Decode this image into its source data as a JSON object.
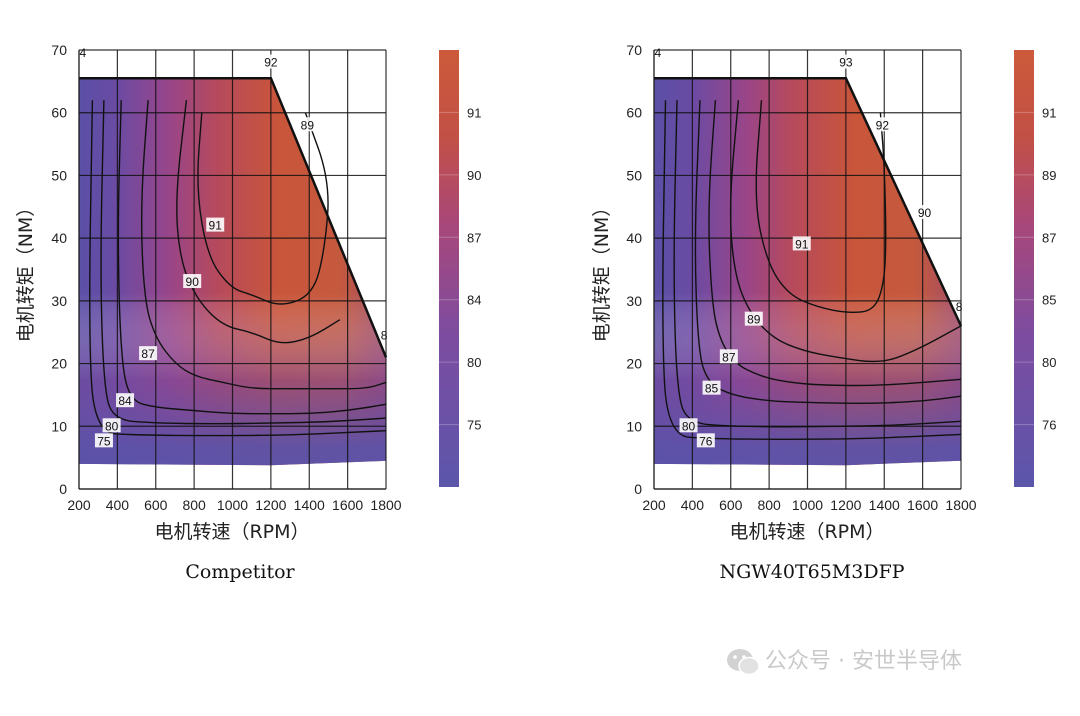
{
  "watermark": {
    "text": "公众号 · 安世半导体",
    "icon": "wechat-icon"
  },
  "chart_data": [
    {
      "type": "heatmap",
      "title": "Competitor",
      "xlabel": "电机转速（RPM）",
      "ylabel": "电机转矩（NM）",
      "xlim": [
        200,
        1800
      ],
      "ylim": [
        0,
        70
      ],
      "x_ticks": [
        "200",
        "400",
        "600",
        "800",
        "1000",
        "1200",
        "1400",
        "1600",
        "1800"
      ],
      "y_ticks": [
        "0",
        "10",
        "20",
        "30",
        "40",
        "50",
        "60",
        "70"
      ],
      "grid": true,
      "operating_boundary": [
        [
          200,
          65.5
        ],
        [
          1200,
          65.5
        ],
        [
          1800,
          21
        ],
        [
          1800,
          4.5
        ],
        [
          1200,
          3.8
        ],
        [
          200,
          4
        ]
      ],
      "contours": [
        {
          "level": "91",
          "points": [
            [
              840,
              60
            ],
            [
              810,
              48
            ],
            [
              870,
              37
            ],
            [
              990,
              32
            ],
            [
              1100,
              31
            ],
            [
              1250,
              29
            ],
            [
              1420,
              31
            ],
            [
              1480,
              38
            ],
            [
              1510,
              49
            ],
            [
              1380,
              60
            ]
          ]
        },
        {
          "level": "90",
          "points": [
            [
              760,
              62
            ],
            [
              700,
              46
            ],
            [
              730,
              36
            ],
            [
              820,
              30
            ],
            [
              950,
              26
            ],
            [
              1100,
              25
            ],
            [
              1250,
              23
            ],
            [
              1400,
              24
            ],
            [
              1560,
              27
            ]
          ]
        },
        {
          "level": "87",
          "points": [
            [
              560,
              62
            ],
            [
              520,
              45
            ],
            [
              540,
              30
            ],
            [
              600,
              24
            ],
            [
              700,
              20
            ],
            [
              800,
              18
            ],
            [
              950,
              17
            ],
            [
              1100,
              16
            ],
            [
              1300,
              16
            ],
            [
              1500,
              16
            ],
            [
              1700,
              16
            ],
            [
              1800,
              17
            ]
          ]
        },
        {
          "level": "84",
          "points": [
            [
              420,
              62
            ],
            [
              400,
              40
            ],
            [
              420,
              20
            ],
            [
              470,
              14
            ],
            [
              600,
              13
            ],
            [
              800,
              12.5
            ],
            [
              1000,
              12
            ],
            [
              1200,
              12
            ],
            [
              1400,
              12
            ],
            [
              1600,
              12.5
            ],
            [
              1800,
              13.5
            ]
          ]
        },
        {
          "level": "80",
          "points": [
            [
              330,
              62
            ],
            [
              310,
              35
            ],
            [
              330,
              16
            ],
            [
              380,
              11
            ],
            [
              600,
              10.5
            ],
            [
              900,
              10.4
            ],
            [
              1200,
              10.5
            ],
            [
              1500,
              10.7
            ],
            [
              1800,
              11.3
            ]
          ]
        },
        {
          "level": "75",
          "points": [
            [
              270,
              62
            ],
            [
              250,
              25
            ],
            [
              280,
              9
            ],
            [
              500,
              8.6
            ],
            [
              900,
              8.5
            ],
            [
              1300,
              8.6
            ],
            [
              1800,
              9.3
            ]
          ]
        }
      ],
      "contour_labels": [
        {
          "text": "92",
          "x": 1200,
          "y": 68
        },
        {
          "text": "89",
          "x": 1390,
          "y": 58
        },
        {
          "text": "91",
          "x": 910,
          "y": 42
        },
        {
          "text": "90",
          "x": 790,
          "y": 33
        },
        {
          "text": "87",
          "x": 560,
          "y": 21.5
        },
        {
          "text": "84",
          "x": 440,
          "y": 14
        },
        {
          "text": "80",
          "x": 370,
          "y": 10
        },
        {
          "text": "75",
          "x": 330,
          "y": 7.6
        },
        {
          "text": "8",
          "x": 1790,
          "y": 24.5
        },
        {
          "text": "4",
          "x": 220,
          "y": 69.5
        }
      ],
      "colorbar": {
        "levels": [
          "75",
          "80",
          "84",
          "87",
          "90",
          "91"
        ]
      }
    },
    {
      "type": "heatmap",
      "title": "NGW40T65M3DFP",
      "xlabel": "电机转速（RPM）",
      "ylabel": "电机转矩（NM）",
      "xlim": [
        200,
        1800
      ],
      "ylim": [
        0,
        70
      ],
      "x_ticks": [
        "200",
        "400",
        "600",
        "800",
        "1000",
        "1200",
        "1400",
        "1600",
        "1800"
      ],
      "y_ticks": [
        "0",
        "10",
        "20",
        "30",
        "40",
        "50",
        "60",
        "70"
      ],
      "grid": true,
      "operating_boundary": [
        [
          200,
          65.5
        ],
        [
          1200,
          65.5
        ],
        [
          1800,
          26
        ],
        [
          1800,
          4.5
        ],
        [
          1200,
          3.8
        ],
        [
          200,
          4
        ]
      ],
      "contours": [
        {
          "level": "91",
          "points": [
            [
              760,
              62
            ],
            [
              720,
              46
            ],
            [
              790,
              36
            ],
            [
              900,
              31
            ],
            [
              1050,
              29
            ],
            [
              1220,
              28
            ],
            [
              1350,
              28.5
            ],
            [
              1400,
              33
            ],
            [
              1410,
              40
            ],
            [
              1400,
              52
            ],
            [
              1380,
              60
            ]
          ]
        },
        {
          "level": "89",
          "points": [
            [
              640,
              62
            ],
            [
              590,
              45
            ],
            [
              620,
              34
            ],
            [
              700,
              28
            ],
            [
              820,
              24
            ],
            [
              980,
              22
            ],
            [
              1150,
              21
            ],
            [
              1380,
              20
            ],
            [
              1560,
              22
            ],
            [
              1800,
              26
            ]
          ]
        },
        {
          "level": "87",
          "points": [
            [
              520,
              62
            ],
            [
              480,
              45
            ],
            [
              500,
              30
            ],
            [
              540,
              24
            ],
            [
              620,
              20
            ],
            [
              750,
              18
            ],
            [
              900,
              17
            ],
            [
              1100,
              16.5
            ],
            [
              1400,
              16.5
            ],
            [
              1800,
              17.5
            ]
          ]
        },
        {
          "level": "85",
          "points": [
            [
              440,
              62
            ],
            [
              410,
              40
            ],
            [
              430,
              22
            ],
            [
              480,
              17
            ],
            [
              600,
              15
            ],
            [
              800,
              14
            ],
            [
              1000,
              13.8
            ],
            [
              1300,
              13.6
            ],
            [
              1600,
              14
            ],
            [
              1800,
              14.8
            ]
          ]
        },
        {
          "level": "80",
          "points": [
            [
              320,
              62
            ],
            [
              300,
              35
            ],
            [
              320,
              15
            ],
            [
              380,
              10.5
            ],
            [
              600,
              10
            ],
            [
              900,
              9.9
            ],
            [
              1200,
              10
            ],
            [
              1500,
              10.2
            ],
            [
              1800,
              10.8
            ]
          ]
        },
        {
          "level": "76",
          "points": [
            [
              260,
              62
            ],
            [
              240,
              25
            ],
            [
              270,
              8.5
            ],
            [
              500,
              8
            ],
            [
              900,
              7.9
            ],
            [
              1300,
              8
            ],
            [
              1800,
              8.7
            ]
          ]
        }
      ],
      "contour_labels": [
        {
          "text": "93",
          "x": 1200,
          "y": 68
        },
        {
          "text": "92",
          "x": 1390,
          "y": 58
        },
        {
          "text": "91",
          "x": 970,
          "y": 39
        },
        {
          "text": "90",
          "x": 1610,
          "y": 44
        },
        {
          "text": "89",
          "x": 720,
          "y": 27
        },
        {
          "text": "87",
          "x": 590,
          "y": 21
        },
        {
          "text": "85",
          "x": 500,
          "y": 16
        },
        {
          "text": "80",
          "x": 380,
          "y": 10
        },
        {
          "text": "76",
          "x": 470,
          "y": 7.6
        },
        {
          "text": "8",
          "x": 1790,
          "y": 29
        },
        {
          "text": "4",
          "x": 220,
          "y": 69.5
        }
      ],
      "colorbar": {
        "levels": [
          "76",
          "80",
          "85",
          "87",
          "89",
          "91"
        ]
      }
    }
  ]
}
